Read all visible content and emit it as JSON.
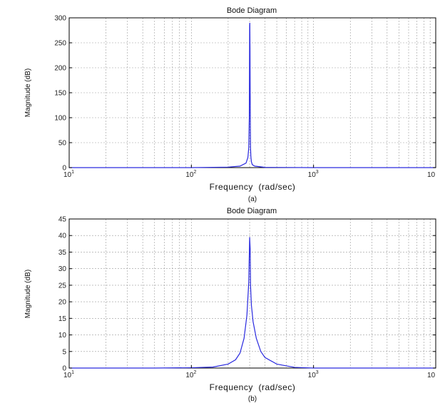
{
  "chart_data": [
    {
      "type": "line",
      "title": "Bode Diagram",
      "xlabel": "Frequency  (rad/sec)",
      "ylabel": "Magnitude (dB)",
      "caption": "(a)",
      "xscale": "log",
      "xlim": [
        10,
        10000
      ],
      "ylim": [
        0,
        300
      ],
      "yticks": [
        0,
        50,
        100,
        150,
        200,
        250,
        300
      ],
      "xticks": [
        {
          "base": "10",
          "exp": "1"
        },
        {
          "base": "10",
          "exp": "2"
        },
        {
          "base": "10",
          "exp": "3"
        },
        {
          "base": "10",
          "exp": ""
        }
      ],
      "grid": true,
      "color": "#2a2adf",
      "series": [
        {
          "x": [
            10,
            50,
            100,
            200,
            250,
            280,
            290,
            295,
            298,
            300,
            301,
            302,
            303,
            304,
            305,
            307,
            310,
            315,
            330,
            400,
            1000,
            10000
          ],
          "y": [
            0,
            0,
            0,
            1,
            3,
            9,
            20,
            40,
            100,
            285,
            290,
            240,
            150,
            80,
            40,
            22,
            12,
            6,
            3,
            0.5,
            0,
            0
          ]
        }
      ]
    },
    {
      "type": "line",
      "title": "Bode Diagram",
      "xlabel": "Frequency  (rad/sec)",
      "ylabel": "Magnitude (dB)",
      "caption": "(b)",
      "xscale": "log",
      "xlim": [
        10,
        10000
      ],
      "ylim": [
        0,
        45
      ],
      "yticks": [
        0,
        5,
        10,
        15,
        20,
        25,
        30,
        35,
        40,
        45
      ],
      "xticks": [
        {
          "base": "10",
          "exp": "1"
        },
        {
          "base": "10",
          "exp": "2"
        },
        {
          "base": "10",
          "exp": "3"
        },
        {
          "base": "10",
          "exp": ""
        }
      ],
      "grid": true,
      "color": "#2a2adf",
      "series": [
        {
          "x": [
            10,
            50,
            100,
            150,
            200,
            230,
            250,
            270,
            285,
            295,
            300,
            303,
            305,
            310,
            320,
            340,
            370,
            400,
            500,
            700,
            1000,
            10000
          ],
          "y": [
            0,
            0,
            0.1,
            0.3,
            1.2,
            2.5,
            4.5,
            9,
            16,
            26,
            39.5,
            36,
            25,
            19,
            14,
            9,
            5,
            3.2,
            1.2,
            0.2,
            0,
            0
          ]
        }
      ]
    }
  ]
}
